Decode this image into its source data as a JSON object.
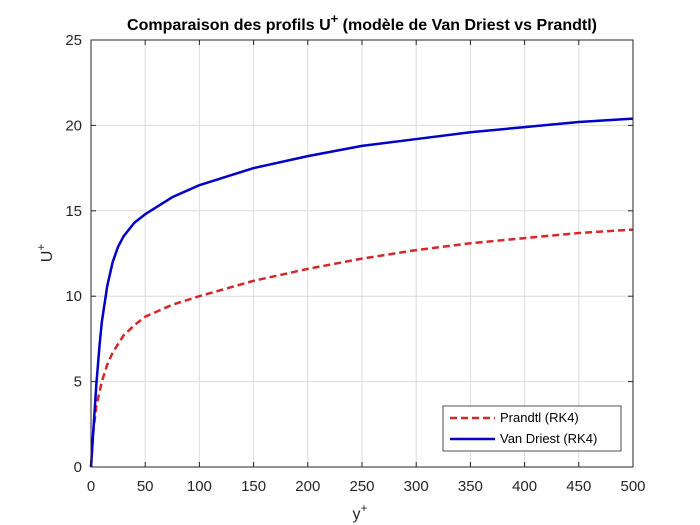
{
  "chart_data": {
    "type": "line",
    "title_main": "Comparaison des profils U",
    "title_sup": "+",
    "title_rest": " (modèle de Van Driest vs Prandtl)",
    "xlabel_main": "y",
    "xlabel_sup": "+",
    "ylabel_main": "U",
    "ylabel_sup": "+",
    "xlim": [
      0,
      500
    ],
    "ylim": [
      0,
      25
    ],
    "xticks": [
      0,
      50,
      100,
      150,
      200,
      250,
      300,
      350,
      400,
      450,
      500
    ],
    "yticks": [
      0,
      5,
      10,
      15,
      20,
      25
    ],
    "grid": true,
    "legend_position": "bottom-right",
    "series": [
      {
        "name": "Prandtl (RK4)",
        "color": "#d62728",
        "style": "dashed",
        "x": [
          0,
          2,
          5,
          10,
          15,
          20,
          30,
          40,
          50,
          75,
          100,
          150,
          200,
          250,
          300,
          350,
          400,
          450,
          500
        ],
        "y": [
          0,
          2.0,
          3.6,
          5.0,
          6.0,
          6.7,
          7.7,
          8.3,
          8.8,
          9.5,
          10.0,
          10.9,
          11.6,
          12.2,
          12.7,
          13.1,
          13.4,
          13.7,
          13.9
        ]
      },
      {
        "name": "Van Driest (RK4)",
        "color": "#0000c8",
        "style": "solid",
        "x": [
          0,
          2,
          5,
          8,
          10,
          15,
          20,
          25,
          30,
          40,
          50,
          75,
          100,
          150,
          200,
          250,
          300,
          350,
          400,
          450,
          500
        ],
        "y": [
          0,
          2.0,
          4.9,
          7.2,
          8.5,
          10.6,
          12.0,
          12.9,
          13.5,
          14.3,
          14.8,
          15.8,
          16.5,
          17.5,
          18.2,
          18.8,
          19.2,
          19.6,
          19.9,
          20.2,
          20.4
        ]
      }
    ]
  }
}
